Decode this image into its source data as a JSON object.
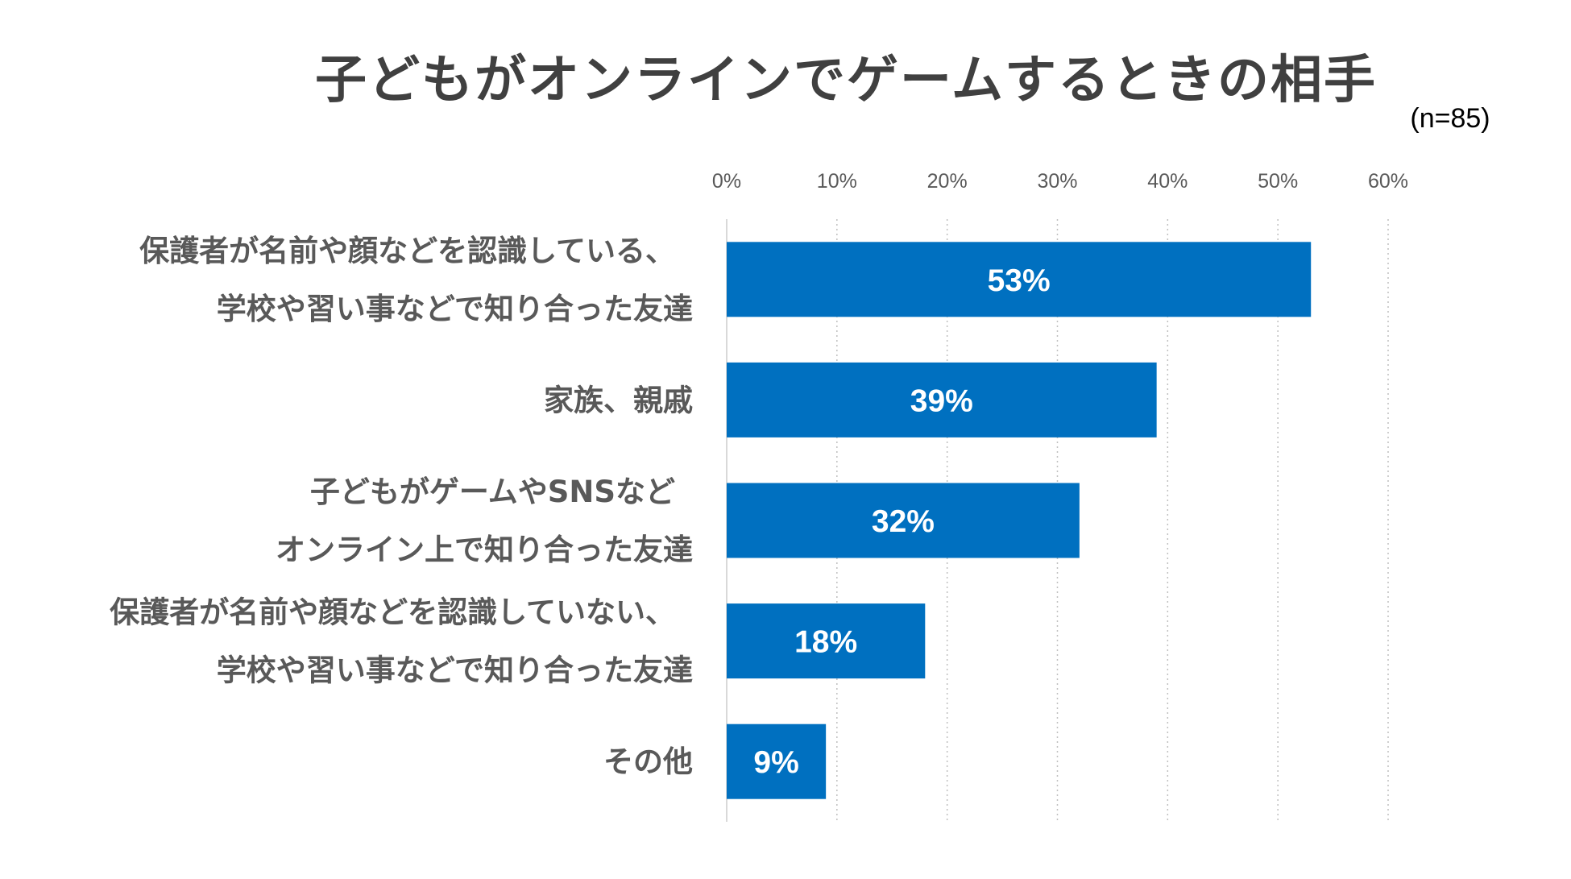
{
  "title": "子どもがオンラインでゲームするときの相手",
  "sample_size": "(n=85)",
  "colors": {
    "bar": "#0070C0",
    "grid": "#BFBFBF",
    "axis": "#D9D9D9",
    "text": "#595959"
  },
  "chart_data": {
    "type": "bar",
    "orientation": "horizontal",
    "title": "子どもがオンラインでゲームするときの相手",
    "xlabel": "",
    "ylabel": "",
    "xlim": [
      0,
      60
    ],
    "ticks": [
      0,
      10,
      20,
      30,
      40,
      50,
      60
    ],
    "tick_labels": [
      "0%",
      "10%",
      "20%",
      "30%",
      "40%",
      "50%",
      "60%"
    ],
    "grid": "vertical dotted",
    "axis_position": "top",
    "categories": [
      [
        "保護者が名前や顔などを認識している、",
        "学校や習い事などで知り合った友達"
      ],
      [
        "家族、親戚"
      ],
      [
        "子どもがゲームやSNSなど",
        "オンライン上で知り合った友達"
      ],
      [
        "保護者が名前や顔などを認識していない、",
        "学校や習い事などで知り合った友達"
      ],
      [
        "その他"
      ]
    ],
    "values": [
      53,
      39,
      32,
      18,
      9
    ],
    "value_labels": [
      "53%",
      "39%",
      "32%",
      "18%",
      "9%"
    ]
  }
}
